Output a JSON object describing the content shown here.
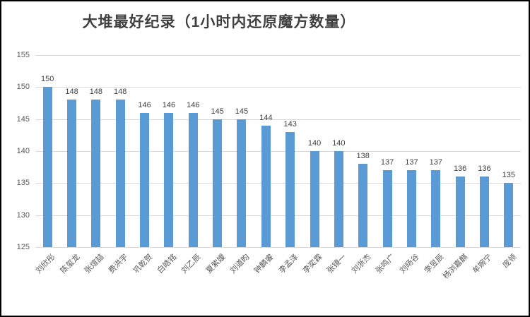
{
  "chart_data": {
    "type": "bar",
    "title": "大堆最好纪录（1小时内还原魔方数量）",
    "categories": [
      "刘欣彤",
      "陈玺龙",
      "张煊喆",
      "费洪宇",
      "巩乾贺",
      "白皓铭",
      "刘乙辰",
      "夏紫嫒",
      "刘道昀",
      "钟麟睿",
      "李孟泽",
      "李奕霖",
      "张镜一",
      "刘浙杰",
      "张鸣广",
      "刘旸谷",
      "李昱辰",
      "杨浏嘉麒",
      "牟婉宁",
      "庞领"
    ],
    "values": [
      150,
      148,
      148,
      148,
      146,
      146,
      146,
      145,
      145,
      144,
      143,
      140,
      140,
      138,
      137,
      137,
      137,
      136,
      136,
      135
    ],
    "xlabel": "",
    "ylabel": "",
    "ylim": [
      125,
      155
    ],
    "yticks": [
      125,
      130,
      135,
      140,
      145,
      150,
      155
    ],
    "grid": true,
    "data_labels": true,
    "legend": "none",
    "bar_color": "#5B9BD5",
    "gridline_color": "#D9D9D9",
    "title_color": "#404040",
    "data_label_color": "#404040",
    "axis_label_color": "#595959"
  }
}
